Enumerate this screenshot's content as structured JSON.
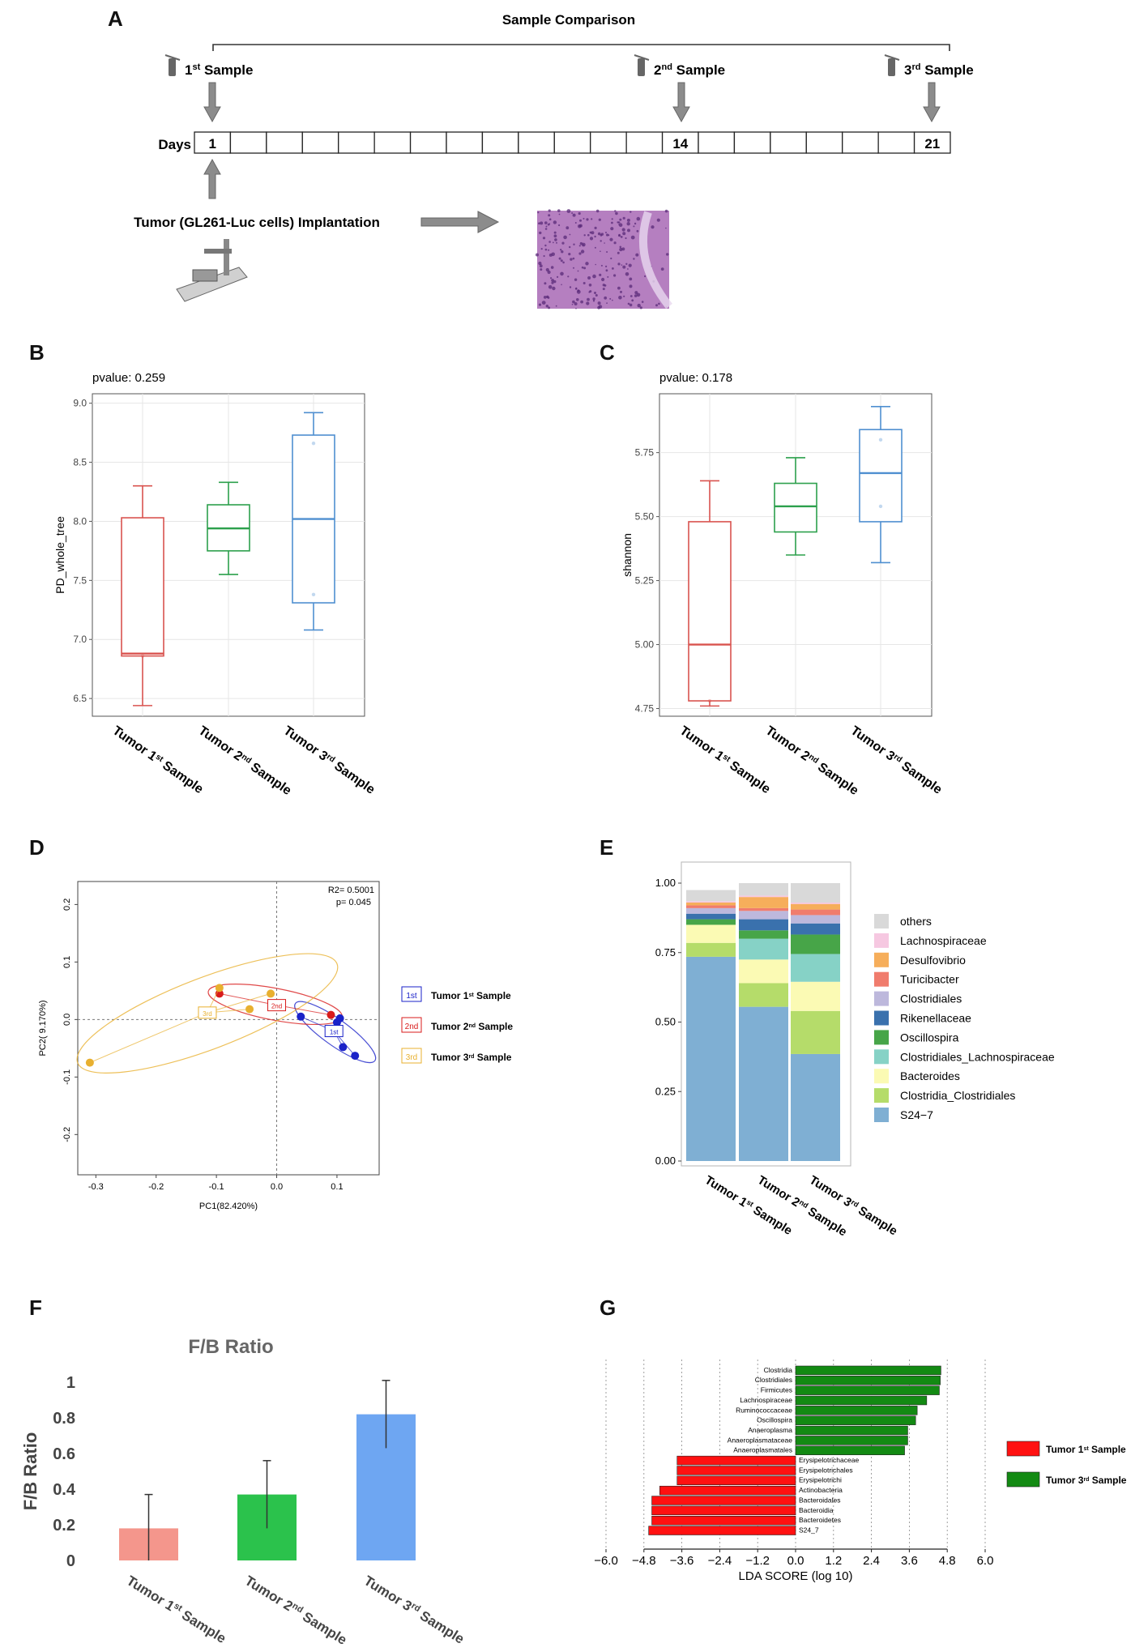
{
  "panel_labels": {
    "a": "A",
    "b": "B",
    "c": "C",
    "d": "D",
    "e": "E",
    "f": "F",
    "g": "G"
  },
  "panel_a": {
    "title": "Sample Comparison",
    "days_label": "Days",
    "timeline_days": 21,
    "marked_days": [
      {
        "day": 1,
        "label": "1"
      },
      {
        "day": 14,
        "label": "14"
      },
      {
        "day": 21,
        "label": "21"
      }
    ],
    "samples": [
      {
        "num": "1",
        "sup": "st",
        "word": "Sample"
      },
      {
        "num": "2",
        "sup": "nd",
        "word": "Sample"
      },
      {
        "num": "3",
        "sup": "rd",
        "word": "Sample"
      }
    ],
    "implantation_label": "Tumor (GL261-Luc cells) Implantation",
    "colors": {
      "arrow": "#8c8c8c",
      "histology_bg": "#b57fc0",
      "histology_cell": "#5a2a78"
    }
  },
  "groups": [
    {
      "prefix": "Tumor 1",
      "sup": "st",
      "suffix": " Sample"
    },
    {
      "prefix": "Tumor 2",
      "sup": "nd",
      "suffix": " Sample"
    },
    {
      "prefix": "Tumor 3",
      "sup": "rd",
      "suffix": " Sample"
    }
  ],
  "group_colors": [
    "#d9534f",
    "#2ca04c",
    "#4f8fd0"
  ],
  "chart_data": [
    {
      "id": "B",
      "type": "box",
      "pvalue_text": "pvalue: 0.259",
      "ylabel": "PD_whole_tree",
      "ylim": [
        6.35,
        9.08
      ],
      "yticks": [
        6.5,
        7.0,
        7.5,
        8.0,
        8.5,
        9.0
      ],
      "ytick_labels": [
        "6.5",
        "7.0",
        "7.5",
        "8.0",
        "8.5",
        "9.0"
      ],
      "boxes": [
        {
          "min": 6.44,
          "q1": 6.86,
          "median": 6.88,
          "q3": 8.03,
          "max": 8.3,
          "points": [
            6.86
          ]
        },
        {
          "min": 7.55,
          "q1": 7.75,
          "median": 7.94,
          "q3": 8.14,
          "max": 8.33,
          "points": []
        },
        {
          "min": 7.08,
          "q1": 7.31,
          "median": 8.02,
          "q3": 8.73,
          "max": 8.92,
          "points": [
            8.66,
            7.38
          ]
        }
      ]
    },
    {
      "id": "C",
      "type": "box",
      "pvalue_text": "pvalue: 0.178",
      "ylabel": "shannon",
      "ylim": [
        4.72,
        5.98
      ],
      "yticks": [
        4.75,
        5.0,
        5.25,
        5.5,
        5.75
      ],
      "ytick_labels": [
        "4.75",
        "5.00",
        "5.25",
        "5.50",
        "5.75"
      ],
      "boxes": [
        {
          "min": 4.76,
          "q1": 4.78,
          "median": 5.0,
          "q3": 5.48,
          "max": 5.64,
          "points": [
            4.78
          ]
        },
        {
          "min": 5.35,
          "q1": 5.44,
          "median": 5.54,
          "q3": 5.63,
          "max": 5.73,
          "points": []
        },
        {
          "min": 5.32,
          "q1": 5.48,
          "median": 5.67,
          "q3": 5.84,
          "max": 5.93,
          "points": [
            5.8,
            5.54
          ]
        }
      ]
    },
    {
      "id": "D",
      "type": "scatter",
      "xlabel": "PC1(82.420%)",
      "ylabel": "PC2( 9.170%)",
      "xlim": [
        -0.33,
        0.17
      ],
      "ylim": [
        -0.27,
        0.24
      ],
      "xticks": [
        -0.3,
        -0.2,
        -0.1,
        0.0,
        0.1
      ],
      "xtick_labels": [
        "-0.3",
        "-0.2",
        "-0.1",
        "0.0",
        "0.1"
      ],
      "yticks": [
        -0.2,
        -0.1,
        0.0,
        0.1,
        0.2
      ],
      "ytick_labels": [
        "-0.2",
        "-0.1",
        "0.0",
        "0.1",
        "0.2"
      ],
      "r2_text": "R2= 0.5001",
      "p_text": "p= 0.045",
      "series": [
        {
          "name": "1st",
          "color": "#1a22c8",
          "points": [
            [
              0.04,
              0.005
            ],
            [
              0.1,
              -0.005
            ],
            [
              0.105,
              0.002
            ],
            [
              0.11,
              -0.048
            ],
            [
              0.13,
              -0.063
            ]
          ],
          "centroid": [
            0.095,
            -0.02
          ],
          "centroid_label": "1st"
        },
        {
          "name": "2nd",
          "color": "#d81b1b",
          "points": [
            [
              -0.095,
              0.045
            ],
            [
              0.09,
              0.008
            ]
          ],
          "centroid": [
            0.0,
            0.025
          ],
          "centroid_label": "2nd"
        },
        {
          "name": "3rd",
          "color": "#e8b02f",
          "points": [
            [
              -0.31,
              -0.075
            ],
            [
              -0.095,
              0.055
            ],
            [
              -0.045,
              0.018
            ],
            [
              -0.01,
              0.045
            ]
          ],
          "centroid": [
            -0.115,
            0.012
          ],
          "centroid_label": "3rd"
        }
      ],
      "legend": [
        {
          "box": "1st",
          "prefix": "Tumor 1",
          "sup": "st",
          "suffix": " Sample",
          "color": "#1a22c8"
        },
        {
          "box": "2nd",
          "prefix": "Tumor 2",
          "sup": "nd",
          "suffix": " Sample",
          "color": "#d81b1b"
        },
        {
          "box": "3rd",
          "prefix": "Tumor 3",
          "sup": "rd",
          "suffix": " Sample",
          "color": "#e8b02f"
        }
      ]
    },
    {
      "id": "E",
      "type": "stacked-bar",
      "ylim": [
        0,
        1
      ],
      "yticks": [
        0,
        0.25,
        0.5,
        0.75,
        1.0
      ],
      "ytick_labels": [
        "0.00",
        "0.25",
        "0.50",
        "0.75",
        "1.00"
      ],
      "taxa": [
        "S24−7",
        "Clostridia_Clostridiales",
        "Bacteroides",
        "Clostridiales_Lachnospiraceae",
        "Oscillospira",
        "Rikenellaceae",
        "Clostridiales",
        "Turicibacter",
        "Desulfovibrio",
        "Lachnospiraceae",
        "others"
      ],
      "legend_order": [
        "others",
        "Lachnospiraceae",
        "Desulfovibrio",
        "Turicibacter",
        "Clostridiales",
        "Rikenellaceae",
        "Oscillospira",
        "Clostridiales_Lachnospiraceae",
        "Bacteroides",
        "Clostridia_Clostridiales",
        "S24−7"
      ],
      "colors": {
        "S24−7": "#7fafd3",
        "Clostridia_Clostridiales": "#b5dc6a",
        "Bacteroides": "#fbfab4",
        "Clostridiales_Lachnospiraceae": "#86d2c6",
        "Oscillospira": "#47a548",
        "Rikenellaceae": "#3a71ad",
        "Clostridiales": "#bdb8dc",
        "Turicibacter": "#f07c6d",
        "Desulfovibrio": "#f6ae5b",
        "Lachnospiraceae": "#f6c8e1",
        "others": "#d9d9d9"
      },
      "values": [
        [
          0.735,
          0.05,
          0.065,
          0.0,
          0.02,
          0.02,
          0.02,
          0.01,
          0.01,
          0.005,
          0.04
        ],
        [
          0.555,
          0.085,
          0.085,
          0.075,
          0.03,
          0.04,
          0.03,
          0.01,
          0.04,
          0.005,
          0.045
        ],
        [
          0.385,
          0.155,
          0.105,
          0.1,
          0.07,
          0.04,
          0.03,
          0.02,
          0.02,
          0.005,
          0.07
        ]
      ]
    },
    {
      "id": "F",
      "type": "bar",
      "title": "F/B Ratio",
      "ylabel": "F/B Ratio",
      "ylim": [
        0,
        1.0
      ],
      "yticks": [
        0,
        0.2,
        0.4,
        0.6,
        0.8,
        1.0
      ],
      "ytick_labels": [
        "0",
        "0.2",
        "0.4",
        "0.6",
        "0.8",
        "1"
      ],
      "values": [
        0.18,
        0.37,
        0.82
      ],
      "errors": [
        0.19,
        0.19,
        0.19
      ],
      "colors": [
        "#f4968c",
        "#2bc24c",
        "#6ea6f2"
      ]
    },
    {
      "id": "G",
      "type": "horizontal-bar",
      "xlabel": "LDA SCORE (log 10)",
      "xlim": [
        -6.0,
        6.0
      ],
      "xticks": [
        -6.0,
        -4.8,
        -3.6,
        -2.4,
        -1.2,
        0.0,
        1.2,
        2.4,
        3.6,
        4.8,
        6.0
      ],
      "xtick_labels": [
        "−6.0",
        "−4.8",
        "−3.6",
        "−2.4",
        "−1.2",
        "0.0",
        "1.2",
        "2.4",
        "3.6",
        "4.8",
        "6.0"
      ],
      "features": [
        "Clostridia",
        "Clostridiales",
        "Firmicutes",
        "Lachnospiraceae",
        "Ruminococcaceae",
        "Oscillospira",
        "Anaeroplasma",
        "Anaeroplasmataceae",
        "Anaeroplasmatales",
        "Erysipelotrichaceae",
        "Erysipelotrichales",
        "Erysipelotrichi",
        "Actinobacteria",
        "Bacteroidales",
        "Bacteroidia",
        "Bacteroidetes",
        "S24_7"
      ],
      "values": [
        4.6,
        4.58,
        4.55,
        4.15,
        3.85,
        3.8,
        3.55,
        3.55,
        3.45,
        -3.75,
        -3.75,
        -3.75,
        -4.3,
        -4.55,
        -4.55,
        -4.55,
        -4.65
      ],
      "legend": [
        {
          "prefix": "Tumor 1",
          "sup": "st",
          "suffix": " Sample",
          "color": "#ff1111"
        },
        {
          "prefix": "Tumor 3",
          "sup": "rd",
          "suffix": " Sample",
          "color": "#138a13"
        }
      ]
    }
  ]
}
